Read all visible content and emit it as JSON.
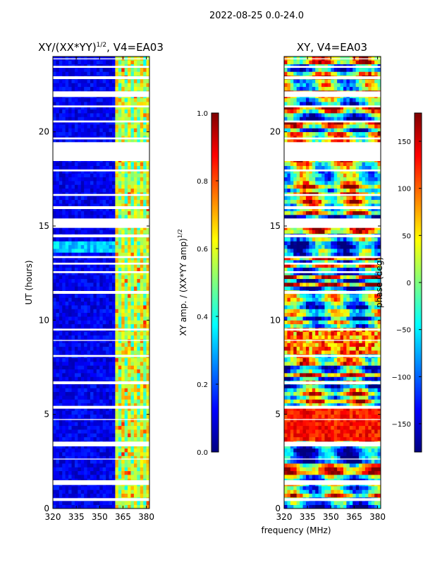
{
  "suptitle": "2022-08-25 0.0-24.0",
  "common_xlabel": "frequency (MHz)",
  "colors": {
    "jet": [
      "#00007f",
      "#0000ff",
      "#007fff",
      "#00ffff",
      "#7fff7f",
      "#ffff00",
      "#ff7f00",
      "#ff0000",
      "#7f0000"
    ],
    "gap": "#ffffff"
  },
  "chart_data": [
    {
      "type": "heatmap",
      "title_main": "XY/(XX*YY)",
      "title_sup": "1/2",
      "title_rest": ", V4=EA03",
      "xlabel": "",
      "ylabel": "UT (hours)",
      "xlim": [
        320,
        382
      ],
      "ylim": [
        0,
        24
      ],
      "xticks": [
        320,
        335,
        350,
        365,
        380
      ],
      "yticks": [
        0,
        5,
        10,
        15,
        20
      ],
      "dominant_band_MHz": [
        359.5,
        382
      ],
      "colorbar": {
        "label_main": "XY amp. / (XX*YY amp)",
        "label_sup": "1/2",
        "range": [
          0.0,
          1.0
        ],
        "ticks": [
          "0.0",
          "0.2",
          "0.4",
          "0.6",
          "0.8",
          "1.0"
        ]
      }
    },
    {
      "type": "heatmap",
      "title": "XY, V4=EA03",
      "xlabel": "frequency (MHz)",
      "ylabel": "",
      "xlim": [
        320,
        382
      ],
      "ylim": [
        0,
        24
      ],
      "xticks": [
        320,
        335,
        350,
        365,
        380
      ],
      "yticks": [
        0,
        5,
        10,
        15,
        20
      ],
      "colorbar": {
        "label": "phase (deg)",
        "range": [
          -180,
          180
        ],
        "ticks": [
          "150",
          "100",
          "50",
          "0",
          "−50",
          "−100",
          "−150"
        ]
      }
    }
  ],
  "flagged_gaps_hours": [
    [
      0.4,
      0.55
    ],
    [
      1.25,
      1.5
    ],
    [
      2.6,
      2.65
    ],
    [
      3.3,
      3.55
    ],
    [
      4.7,
      4.75
    ],
    [
      5.3,
      5.45
    ],
    [
      6.6,
      6.75
    ],
    [
      8.05,
      8.15
    ],
    [
      8.9,
      8.95
    ],
    [
      9.45,
      9.55
    ],
    [
      11.4,
      11.55
    ],
    [
      12.5,
      12.6
    ],
    [
      12.95,
      13.05
    ],
    [
      13.3,
      13.4
    ],
    [
      14.4,
      14.55
    ],
    [
      14.9,
      15.4
    ],
    [
      15.9,
      16.05
    ],
    [
      16.6,
      16.7
    ],
    [
      17.9,
      18.0
    ],
    [
      18.45,
      19.45
    ],
    [
      19.6,
      19.7
    ],
    [
      20.5,
      20.6
    ],
    [
      21.3,
      21.4
    ],
    [
      21.85,
      22.15
    ],
    [
      22.8,
      22.95
    ],
    [
      23.4,
      23.5
    ],
    [
      23.85,
      23.9
    ]
  ]
}
